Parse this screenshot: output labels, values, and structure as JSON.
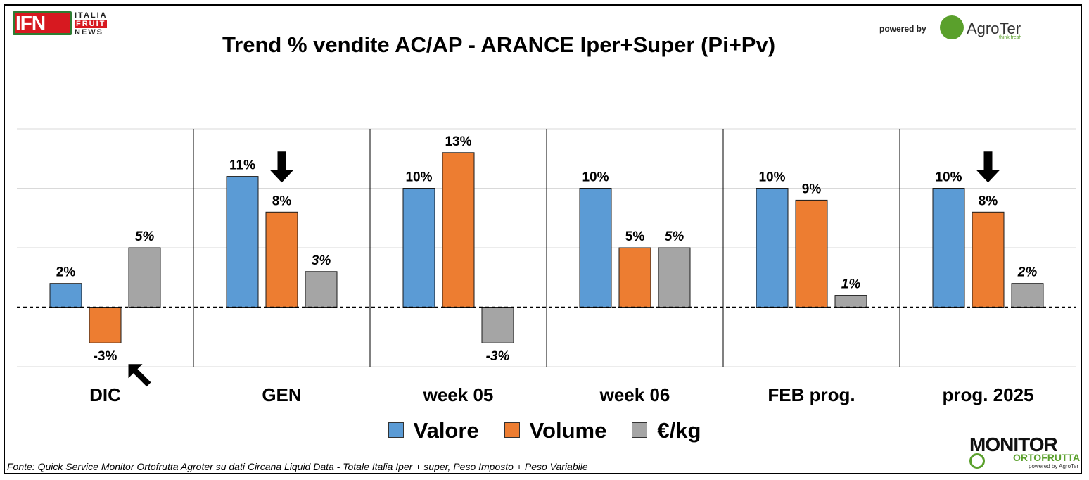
{
  "header": {
    "title": "Trend % vendite AC/AP - ARANCE  Iper+Super (Pi+Pv)",
    "powered_by": "powered by",
    "logo_ifn": {
      "big": "IFN",
      "line1": "ITALIA",
      "line2": "FRUIT",
      "line3": "NEWS"
    },
    "logo_agroter": {
      "name": "AgroTer",
      "tagline": "think fresh"
    }
  },
  "footer": {
    "source": "Fonte: Quick Service Monitor Ortofrutta Agroter su dati Circana Liquid Data - Totale Italia Iper + super, Peso Imposto + Peso Variabile",
    "logo_monitor": {
      "line1": "MONITOR",
      "line2": "ORTOFRUTTA",
      "line3": "powered by AgroTer"
    }
  },
  "chart_data": {
    "type": "bar",
    "title": "Trend % vendite AC/AP - ARANCE  Iper+Super (Pi+Pv)",
    "categories": [
      "DIC",
      "GEN",
      "week 05",
      "week 06",
      "FEB prog.",
      "prog. 2025"
    ],
    "series": [
      {
        "name": "Valore",
        "color": "#5b9bd5",
        "values": [
          2,
          11,
          10,
          10,
          10,
          10
        ],
        "labels": [
          "2%",
          "11%",
          "10%",
          "10%",
          "10%",
          "10%"
        ],
        "label_style": "bold"
      },
      {
        "name": "Volume",
        "color": "#ed7d31",
        "values": [
          -3,
          8,
          13,
          5,
          9,
          8
        ],
        "labels": [
          "-3%",
          "8%",
          "13%",
          "5%",
          "9%",
          "8%"
        ],
        "label_style": "bold"
      },
      {
        "name": "€/kg",
        "color": "#a5a5a5",
        "values": [
          5,
          3,
          -3,
          5,
          1,
          2
        ],
        "labels": [
          "5%",
          "3%",
          "-3%",
          "5%",
          "1%",
          "2%"
        ],
        "label_style": "bold-italic"
      }
    ],
    "ylim": [
      -5,
      15
    ],
    "grid": true,
    "legend": "bottom",
    "annotations": [
      {
        "type": "arrow-down",
        "category": "GEN",
        "series": "Volume"
      },
      {
        "type": "arrow-down",
        "category": "prog. 2025",
        "series": "Volume"
      },
      {
        "type": "arrow-up-left",
        "category": "DIC",
        "series": "Volume"
      }
    ]
  }
}
